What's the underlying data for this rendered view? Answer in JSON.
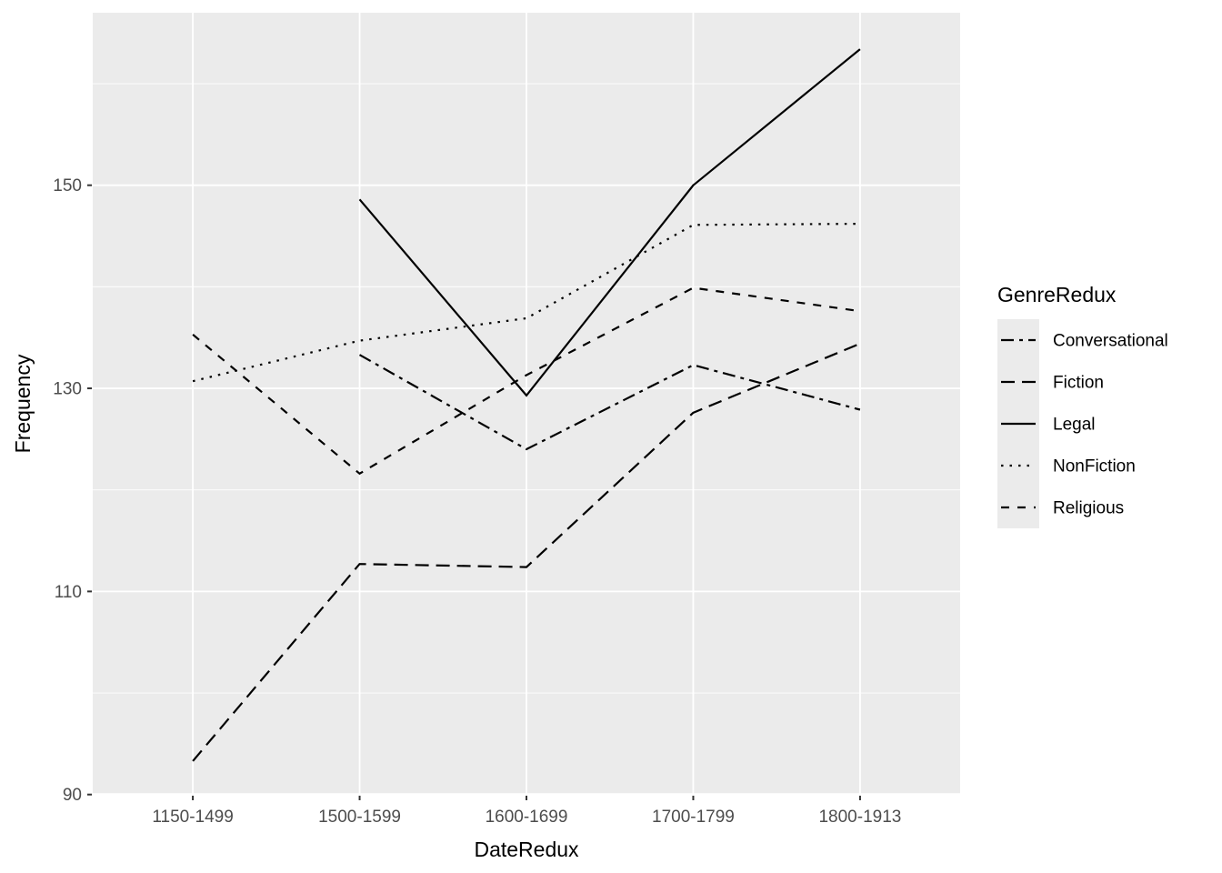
{
  "chart_data": {
    "type": "line",
    "title": "",
    "xlabel": "DateRedux",
    "ylabel": "Frequency",
    "categories": [
      "1150-1499",
      "1500-1599",
      "1600-1699",
      "1700-1799",
      "1800-1913"
    ],
    "y_ticks": [
      90,
      110,
      130,
      150
    ],
    "y_minor_ticks": [
      100,
      120,
      140,
      160
    ],
    "ylim": [
      89.5,
      167
    ],
    "grid": "on",
    "legend": {
      "title": "GenreRedux",
      "position": "right",
      "entries": [
        "Conversational",
        "Fiction",
        "Legal",
        "NonFiction",
        "Religious"
      ]
    },
    "series": [
      {
        "name": "Conversational",
        "linetype": "twodash",
        "values": [
          null,
          133.3,
          124.0,
          132.3,
          127.9
        ]
      },
      {
        "name": "Fiction",
        "linetype": "longdash",
        "values": [
          93.3,
          112.7,
          112.4,
          127.6,
          134.4
        ]
      },
      {
        "name": "Legal",
        "linetype": "solid",
        "values": [
          null,
          148.6,
          129.3,
          150.0,
          163.4
        ]
      },
      {
        "name": "NonFiction",
        "linetype": "dotted",
        "values": [
          130.7,
          134.7,
          136.9,
          146.1,
          146.2
        ]
      },
      {
        "name": "Religious",
        "linetype": "dashed",
        "values": [
          135.3,
          121.6,
          131.3,
          139.9,
          137.6
        ]
      }
    ],
    "colors": {
      "page_bg": "#FFFFFF",
      "panel_bg": "#EBEBEB",
      "grid": "#FFFFFF",
      "line": "#000000",
      "tick_text": "#4D4D4D",
      "axis_title_text": "#000000",
      "tick_mark": "#333333"
    }
  }
}
